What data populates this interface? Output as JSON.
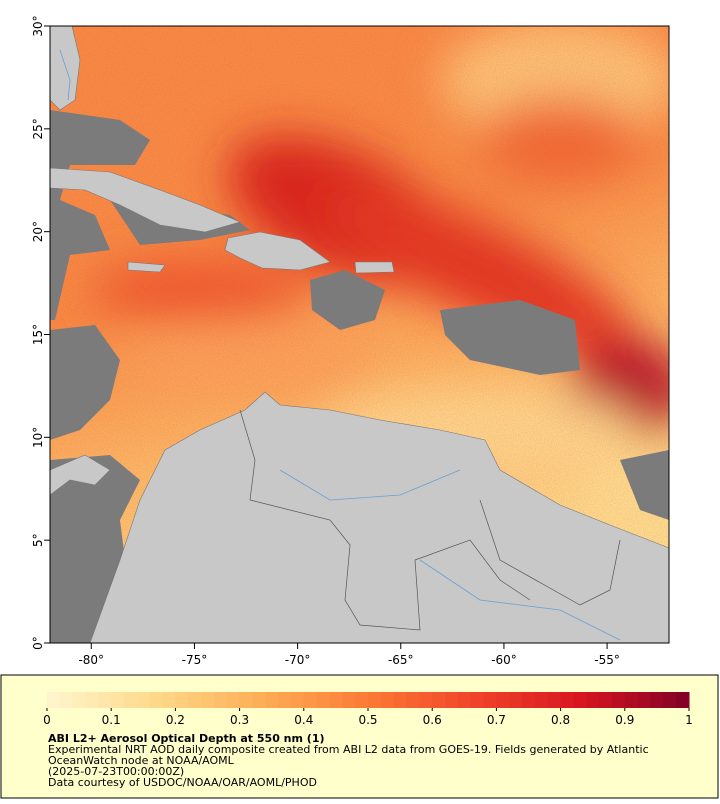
{
  "map": {
    "lon_lim": [
      -82,
      -52
    ],
    "lat_lim": [
      0,
      30
    ],
    "lon_ticks": [
      {
        "value": -80,
        "label": "-80°"
      },
      {
        "value": -75,
        "label": "-75°"
      },
      {
        "value": -70,
        "label": "-70°"
      },
      {
        "value": -65,
        "label": "-65°"
      },
      {
        "value": -60,
        "label": "-60°"
      },
      {
        "value": -55,
        "label": "-55°"
      }
    ],
    "lat_ticks": [
      {
        "value": 0,
        "label": "0°"
      },
      {
        "value": 5,
        "label": "5°"
      },
      {
        "value": 10,
        "label": "10°"
      },
      {
        "value": 15,
        "label": "15°"
      },
      {
        "value": 20,
        "label": "20°"
      },
      {
        "value": 25,
        "label": "25°"
      },
      {
        "value": 30,
        "label": "30°"
      }
    ]
  },
  "colorbar": {
    "lim": [
      0,
      1
    ],
    "ticks": [
      0,
      0.1,
      0.2,
      0.3,
      0.4,
      0.5,
      0.6,
      0.7,
      0.8,
      0.9,
      1
    ],
    "colors": [
      "#fff6cf",
      "#fed98a",
      "#fdae56",
      "#fc7a35",
      "#f0432a",
      "#d7151f",
      "#800026"
    ]
  },
  "caption": {
    "title": "ABI L2+ Aerosol Optical Depth at 550 nm (1)",
    "lines": [
      "Experimental NRT AOD daily composite created from ABI L2 data from GOES-19. Fields generated by Atlantic",
      "OceanWatch node at NOAA/AOML",
      "(2025-07-23T00:00:00Z)",
      "Data courtesy of USDOC/NOAA/OAR/AOML/PHOD"
    ]
  }
}
